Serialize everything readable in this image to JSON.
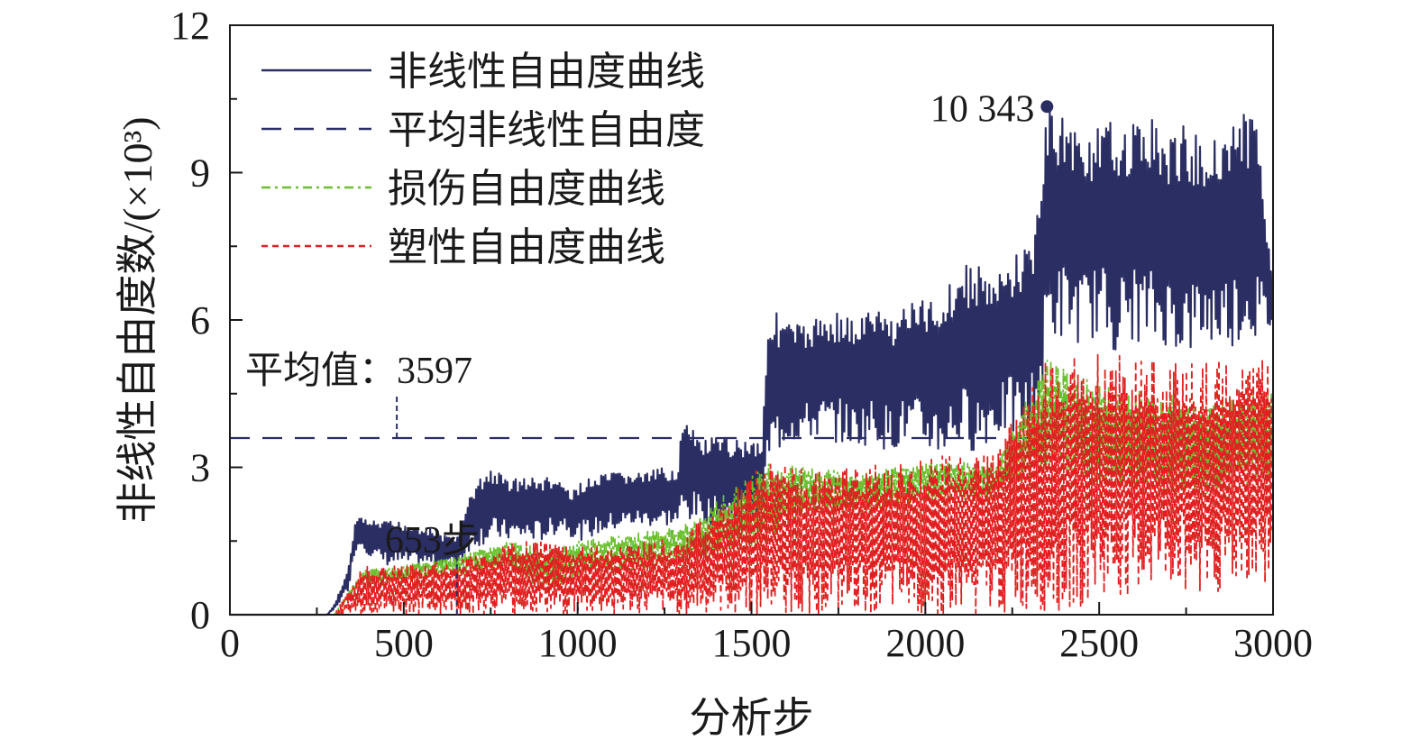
{
  "chart_data": {
    "type": "line",
    "xlabel": "分析步",
    "ylabel": "非线性自由度数/(×10³)",
    "xlim": [
      0,
      3000
    ],
    "ylim": [
      0,
      12
    ],
    "x_ticks": [
      "0",
      "500",
      "1000",
      "1500",
      "2000",
      "2500",
      "3000"
    ],
    "y_ticks": [
      "0",
      "3",
      "6",
      "9",
      "12"
    ],
    "grid": false,
    "legend_position": "top-left",
    "series": [
      {
        "name": "非线性自由度曲线",
        "color": "#2b2e63",
        "style": "solid",
        "x": [
          0,
          280,
          300,
          340,
          360,
          380,
          400,
          450,
          500,
          560,
          620,
          653,
          700,
          720,
          750,
          800,
          850,
          900,
          930,
          960,
          980,
          1000,
          1050,
          1100,
          1150,
          1200,
          1250,
          1290,
          1300,
          1350,
          1400,
          1450,
          1500,
          1530,
          1550,
          1600,
          1650,
          1700,
          1750,
          1800,
          1850,
          1900,
          1950,
          2000,
          2050,
          2100,
          2150,
          2200,
          2250,
          2300,
          2330,
          2350,
          2400,
          2450,
          2500,
          2550,
          2600,
          2650,
          2700,
          2750,
          2800,
          2850,
          2900,
          2950,
          3000
        ],
        "y_low": [
          0,
          0,
          0.1,
          0.5,
          1.3,
          1.4,
          1.2,
          1.0,
          1.0,
          1.0,
          1.0,
          1.0,
          1.4,
          1.4,
          1.5,
          1.5,
          1.5,
          1.5,
          1.6,
          1.8,
          1.6,
          1.5,
          1.6,
          1.7,
          1.8,
          1.8,
          1.8,
          1.8,
          1.9,
          1.9,
          1.8,
          1.9,
          1.9,
          2.0,
          3.0,
          3.5,
          3.5,
          3.6,
          3.5,
          3.4,
          3.5,
          3.3,
          3.5,
          3.3,
          3.2,
          3.4,
          3.3,
          3.6,
          3.6,
          3.5,
          3.9,
          5.5,
          5.6,
          5.5,
          5.7,
          5.3,
          5.6,
          5.4,
          5.5,
          5.2,
          5.5,
          5.4,
          5.5,
          5.6,
          5.8
        ],
        "y_high": [
          0,
          0,
          0.2,
          0.9,
          1.9,
          2.0,
          1.9,
          1.9,
          1.9,
          1.8,
          1.6,
          1.6,
          2.6,
          2.8,
          3.0,
          2.8,
          2.8,
          2.8,
          2.8,
          2.7,
          2.4,
          2.7,
          2.8,
          2.9,
          2.9,
          2.9,
          3.0,
          3.0,
          4.0,
          3.6,
          3.6,
          3.6,
          3.6,
          3.6,
          6.3,
          6.0,
          5.9,
          6.1,
          6.2,
          6.0,
          6.3,
          6.1,
          6.4,
          6.4,
          6.6,
          7.1,
          7.2,
          6.8,
          7.3,
          7.6,
          8.7,
          10.343,
          10.2,
          9.8,
          9.9,
          10.1,
          10.0,
          10.2,
          9.7,
          10.0,
          9.6,
          9.9,
          10.2,
          10.2,
          7.0
        ]
      },
      {
        "name": "平均非线性自由度",
        "color": "#2b2e63",
        "style": "dashed",
        "x": [
          0,
          3000
        ],
        "y": [
          3.597,
          3.597
        ]
      },
      {
        "name": "损伤自由度曲线",
        "color": "#6abf2e",
        "style": "dashdot",
        "x": [
          0,
          300,
          380,
          500,
          653,
          800,
          930,
          1000,
          1300,
          1550,
          1650,
          1800,
          2000,
          2200,
          2350,
          2500,
          2700,
          2800,
          3000
        ],
        "y_low": [
          0,
          0,
          0.6,
          0.7,
          0.8,
          0.9,
          0.4,
          0.8,
          1.0,
          1.4,
          2.0,
          2.1,
          2.3,
          2.3,
          3.0,
          2.6,
          2.4,
          2.4,
          2.7
        ],
        "y_high": [
          0,
          0,
          0.9,
          1.0,
          1.2,
          1.5,
          1.3,
          1.5,
          1.8,
          3.1,
          3.0,
          2.9,
          3.1,
          3.1,
          5.2,
          4.7,
          4.5,
          4.3,
          4.6
        ]
      },
      {
        "name": "塑性自由度曲线",
        "color": "#e02020",
        "style": "dotted",
        "x": [
          0,
          300,
          380,
          500,
          653,
          800,
          930,
          1000,
          1300,
          1550,
          1650,
          1800,
          2000,
          2200,
          2350,
          2500,
          2700,
          2800,
          3000
        ],
        "y_low": [
          0,
          0,
          0.0,
          0.0,
          0.0,
          0.0,
          0.0,
          0.0,
          0.0,
          0.0,
          0.0,
          0.0,
          0.0,
          0.0,
          0.0,
          0.2,
          0.5,
          0.4,
          0.6
        ],
        "y_high": [
          0,
          0,
          1.0,
          1.0,
          1.1,
          1.5,
          1.5,
          1.4,
          1.6,
          3.2,
          3.0,
          3.0,
          3.2,
          3.4,
          5.3,
          5.3,
          5.2,
          5.2,
          5.2
        ]
      }
    ],
    "annotations": [
      {
        "text": "10 343",
        "x": 2350,
        "y": 10.343,
        "marker": true
      },
      {
        "text": "平均值：3597",
        "x": 480,
        "y": 3.597
      },
      {
        "text": "653步",
        "x": 653,
        "y": 1.6
      }
    ]
  }
}
